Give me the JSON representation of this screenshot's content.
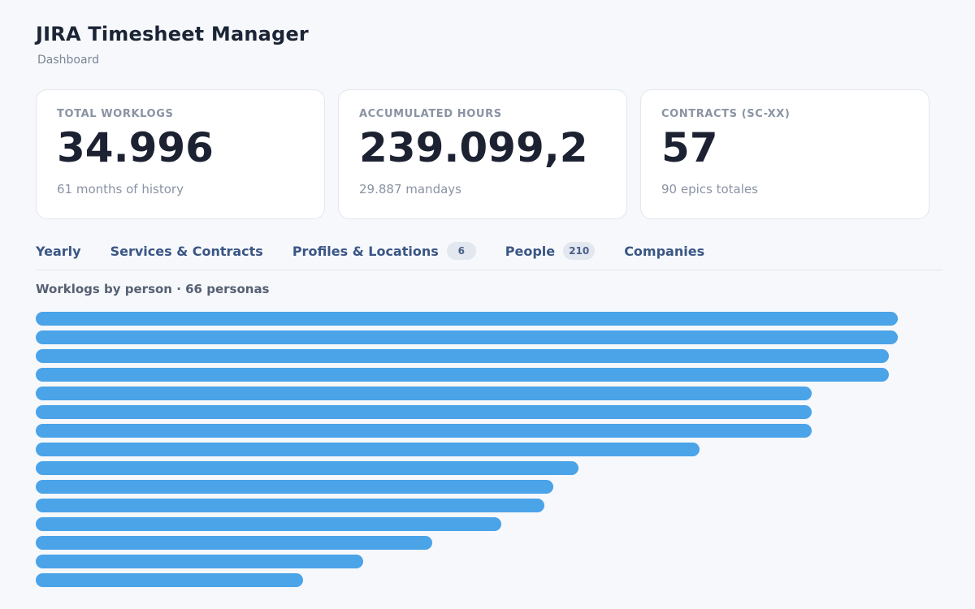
{
  "app": {
    "title": "JIRA Timesheet Manager",
    "subtitle": "Dashboard"
  },
  "cards": [
    {
      "label": "TOTAL WORKLOGS",
      "value": "34.996",
      "note": "61 months of history"
    },
    {
      "label": "ACCUMULATED HOURS",
      "value": "239.099,2",
      "note": "29.887 mandays"
    },
    {
      "label": "CONTRACTS (SC-XX)",
      "value": "57",
      "note": "90 epics totales"
    }
  ],
  "tabs": [
    {
      "label": "Yearly",
      "badge": null
    },
    {
      "label": "Services & Contracts",
      "badge": null
    },
    {
      "label": "Profiles & Locations",
      "badge": "6"
    },
    {
      "label": "People",
      "badge": "210"
    },
    {
      "label": "Companies",
      "badge": null
    }
  ],
  "section": {
    "title": "Worklogs by person · 66 personas"
  },
  "colors": {
    "bar": "#4ba3e8",
    "tab_text": "#3a5684"
  },
  "chart_data": {
    "type": "bar",
    "orientation": "horizontal",
    "max_value": 1.0,
    "values": [
      1.0,
      1.0,
      0.99,
      0.99,
      0.9,
      0.9,
      0.9,
      0.77,
      0.63,
      0.6,
      0.59,
      0.54,
      0.46,
      0.38,
      0.31
    ]
  }
}
